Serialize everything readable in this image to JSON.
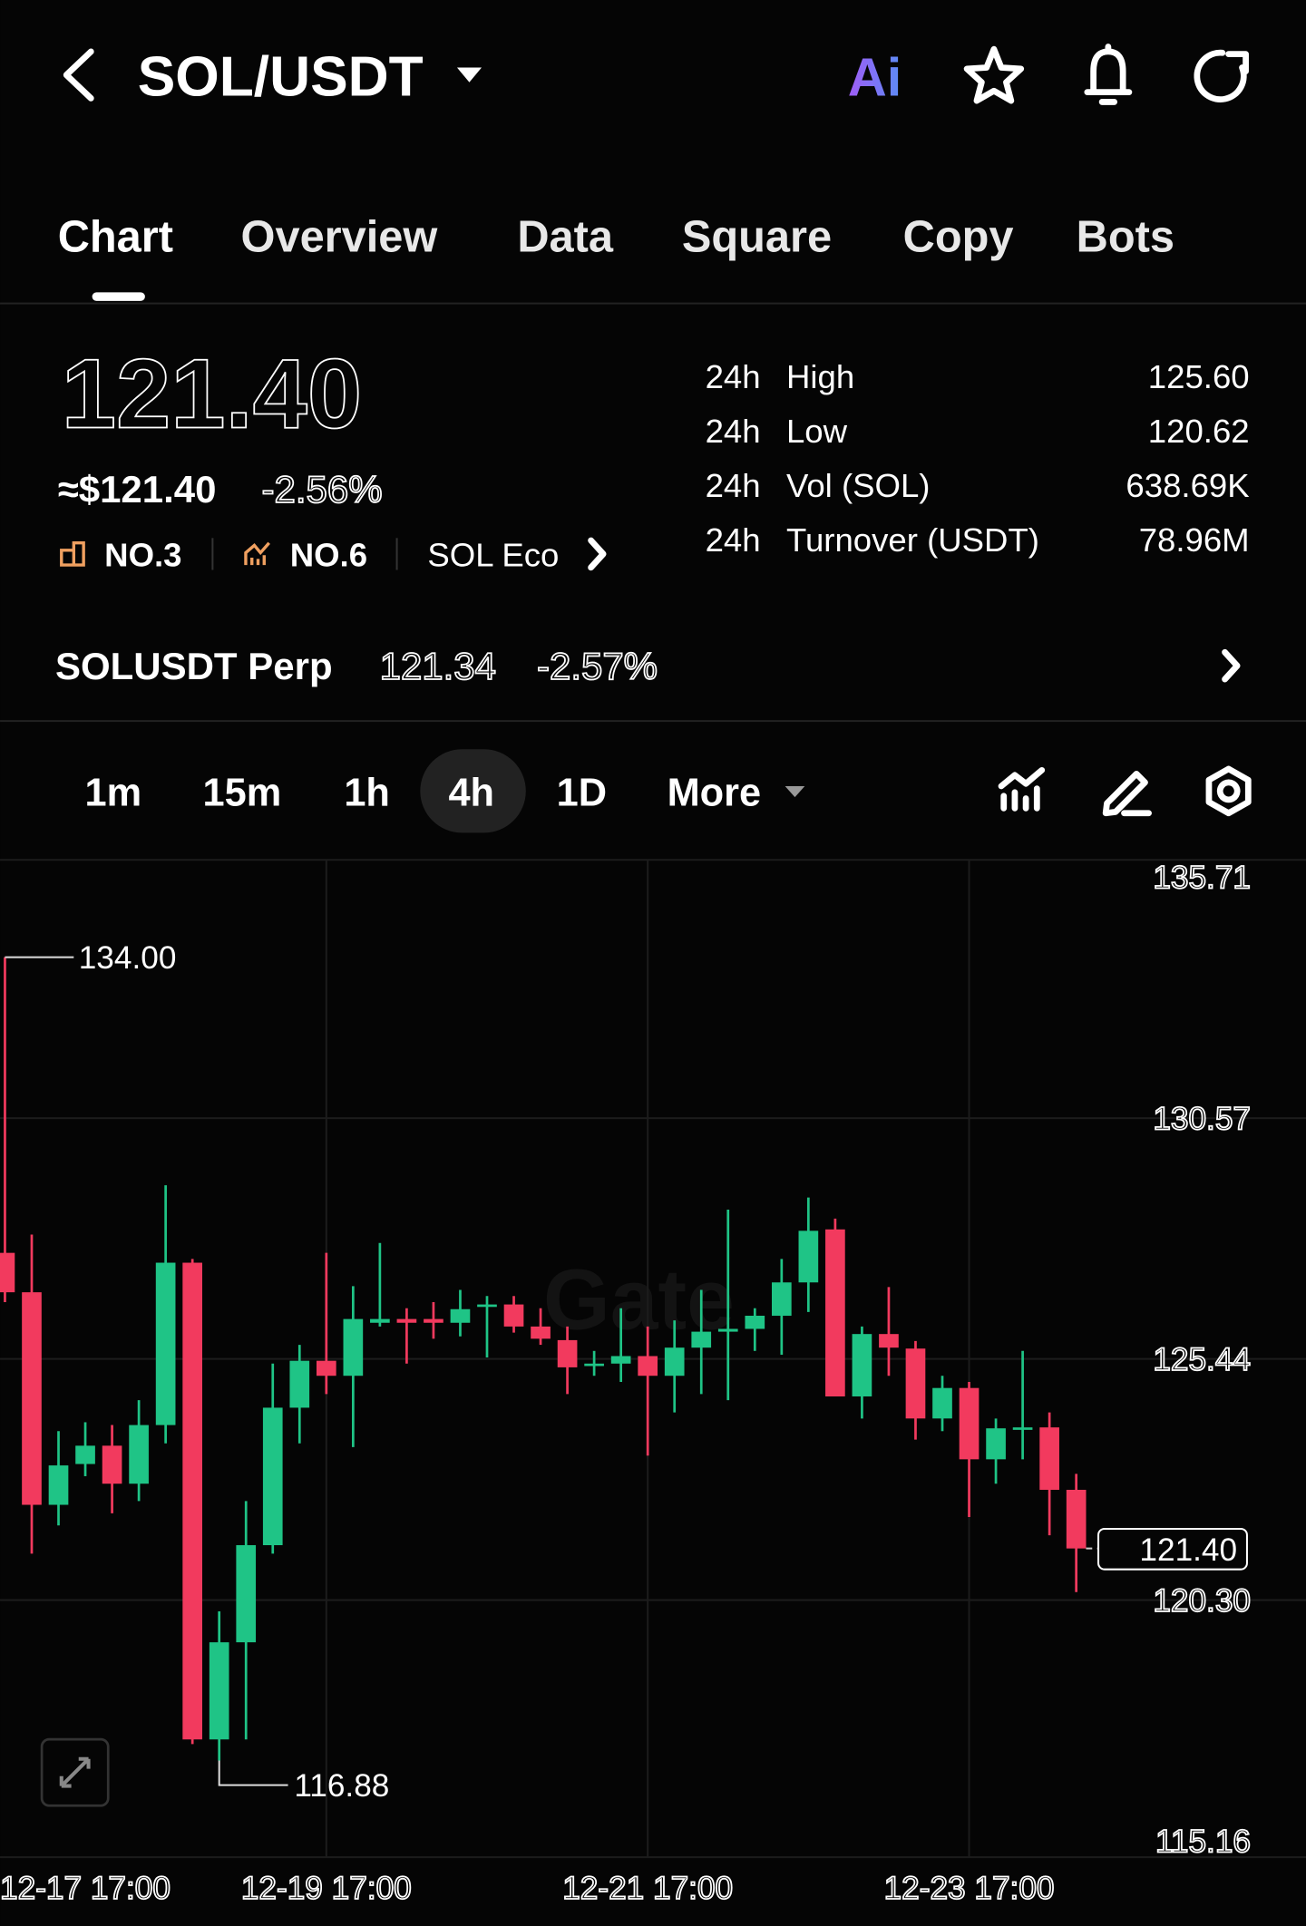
{
  "header": {
    "pair": "SOL/USDT",
    "ai": "Ai"
  },
  "tabs": [
    "Chart",
    "Overview",
    "Data",
    "Square",
    "Copy",
    "Bots"
  ],
  "ticker": {
    "price": "121.40",
    "usd_price": "≈$121.40",
    "change": "-2.56%",
    "ranks": [
      "NO.3",
      "NO.6"
    ],
    "ecosystem": "SOL Eco",
    "stats": [
      {
        "period": "24h",
        "label": "High",
        "value": "125.60"
      },
      {
        "period": "24h",
        "label": "Low",
        "value": "120.62"
      },
      {
        "period": "24h",
        "label": "Vol (SOL)",
        "value": "638.69K"
      },
      {
        "period": "24h",
        "label": "Turnover (USDT)",
        "value": "78.96M"
      }
    ]
  },
  "perp": {
    "name": "SOLUSDT Perp",
    "price": "121.34",
    "change": "-2.57%"
  },
  "intervals": [
    "1m",
    "15m",
    "1h",
    "4h",
    "1D",
    "More"
  ],
  "chart": {
    "type": "candlestick",
    "watermark": "Gate",
    "up_color": "#1fc486",
    "down_color": "#f23a5e",
    "ylim": [
      115.16,
      135.71
    ],
    "yticks": [
      135.71,
      130.57,
      125.44,
      {
        "value": 120.3,
        "label": "120.30"
      },
      115.16
    ],
    "xticks": [
      {
        "value": 0,
        "label": "12-17 17:00"
      },
      {
        "value": 12,
        "label": "12-19 17:00"
      },
      {
        "value": 24,
        "label": "12-21 17:00"
      },
      {
        "value": 36,
        "label": "12-23 17:00"
      }
    ],
    "high_label": "134.00",
    "low_label": "116.88",
    "last_price_label": "121.40",
    "candles": [
      {
        "open": 127.7,
        "high": 134.0,
        "low": 126.65,
        "close": 126.86
      },
      {
        "open": 126.86,
        "high": 128.09,
        "low": 121.29,
        "close": 122.33
      },
      {
        "open": 122.33,
        "high": 123.9,
        "low": 121.89,
        "close": 123.17
      },
      {
        "open": 123.2,
        "high": 124.09,
        "low": 122.94,
        "close": 123.59
      },
      {
        "open": 123.59,
        "high": 124.03,
        "low": 122.15,
        "close": 122.78
      },
      {
        "open": 122.78,
        "high": 124.56,
        "low": 122.41,
        "close": 124.03
      },
      {
        "open": 124.03,
        "high": 129.14,
        "low": 123.64,
        "close": 127.49
      },
      {
        "open": 127.49,
        "high": 127.57,
        "low": 117.23,
        "close": 117.33
      },
      {
        "open": 117.33,
        "high": 120.06,
        "low": 116.88,
        "close": 119.4
      },
      {
        "open": 119.4,
        "high": 122.41,
        "low": 117.33,
        "close": 121.47
      },
      {
        "open": 121.47,
        "high": 125.34,
        "low": 121.29,
        "close": 124.4
      },
      {
        "open": 124.4,
        "high": 125.74,
        "low": 123.64,
        "close": 125.4
      },
      {
        "open": 125.4,
        "high": 127.7,
        "low": 124.69,
        "close": 125.08
      },
      {
        "open": 125.08,
        "high": 126.99,
        "low": 123.56,
        "close": 126.29
      },
      {
        "open": 126.21,
        "high": 127.91,
        "low": 126.13,
        "close": 126.29
      },
      {
        "open": 126.29,
        "high": 126.52,
        "low": 125.34,
        "close": 126.21
      },
      {
        "open": 126.29,
        "high": 126.65,
        "low": 125.87,
        "close": 126.21
      },
      {
        "open": 126.21,
        "high": 126.91,
        "low": 125.92,
        "close": 126.5
      },
      {
        "open": 126.55,
        "high": 126.78,
        "low": 125.47,
        "close": 126.6
      },
      {
        "open": 126.6,
        "high": 126.78,
        "low": 126.0,
        "close": 126.13
      },
      {
        "open": 126.13,
        "high": 126.52,
        "low": 125.74,
        "close": 125.87
      },
      {
        "open": 125.84,
        "high": 126.13,
        "low": 124.69,
        "close": 125.26
      },
      {
        "open": 125.29,
        "high": 125.61,
        "low": 125.08,
        "close": 125.34
      },
      {
        "open": 125.34,
        "high": 126.52,
        "low": 124.95,
        "close": 125.5
      },
      {
        "open": 125.5,
        "high": 126.13,
        "low": 123.38,
        "close": 125.08
      },
      {
        "open": 125.08,
        "high": 126.26,
        "low": 124.3,
        "close": 125.68
      },
      {
        "open": 125.68,
        "high": 126.91,
        "low": 124.69,
        "close": 126.02
      },
      {
        "open": 126.02,
        "high": 128.62,
        "low": 124.56,
        "close": 126.08
      },
      {
        "open": 126.08,
        "high": 126.52,
        "low": 125.61,
        "close": 126.36
      },
      {
        "open": 126.36,
        "high": 127.57,
        "low": 125.53,
        "close": 127.07
      },
      {
        "open": 127.07,
        "high": 128.88,
        "low": 126.44,
        "close": 128.17
      },
      {
        "open": 128.2,
        "high": 128.43,
        "low": 124.64,
        "close": 124.64
      },
      {
        "open": 124.64,
        "high": 126.13,
        "low": 124.17,
        "close": 125.97
      },
      {
        "open": 125.97,
        "high": 126.97,
        "low": 125.08,
        "close": 125.68
      },
      {
        "open": 125.66,
        "high": 125.82,
        "low": 123.72,
        "close": 124.17
      },
      {
        "open": 124.17,
        "high": 125.08,
        "low": 123.9,
        "close": 124.82
      },
      {
        "open": 124.82,
        "high": 124.95,
        "low": 122.07,
        "close": 123.3
      },
      {
        "open": 123.3,
        "high": 124.17,
        "low": 122.78,
        "close": 123.96
      },
      {
        "open": 123.93,
        "high": 125.61,
        "low": 123.3,
        "close": 123.98
      },
      {
        "open": 123.98,
        "high": 124.3,
        "low": 121.68,
        "close": 122.65
      },
      {
        "open": 122.65,
        "high": 122.99,
        "low": 120.47,
        "close": 121.4
      }
    ]
  }
}
